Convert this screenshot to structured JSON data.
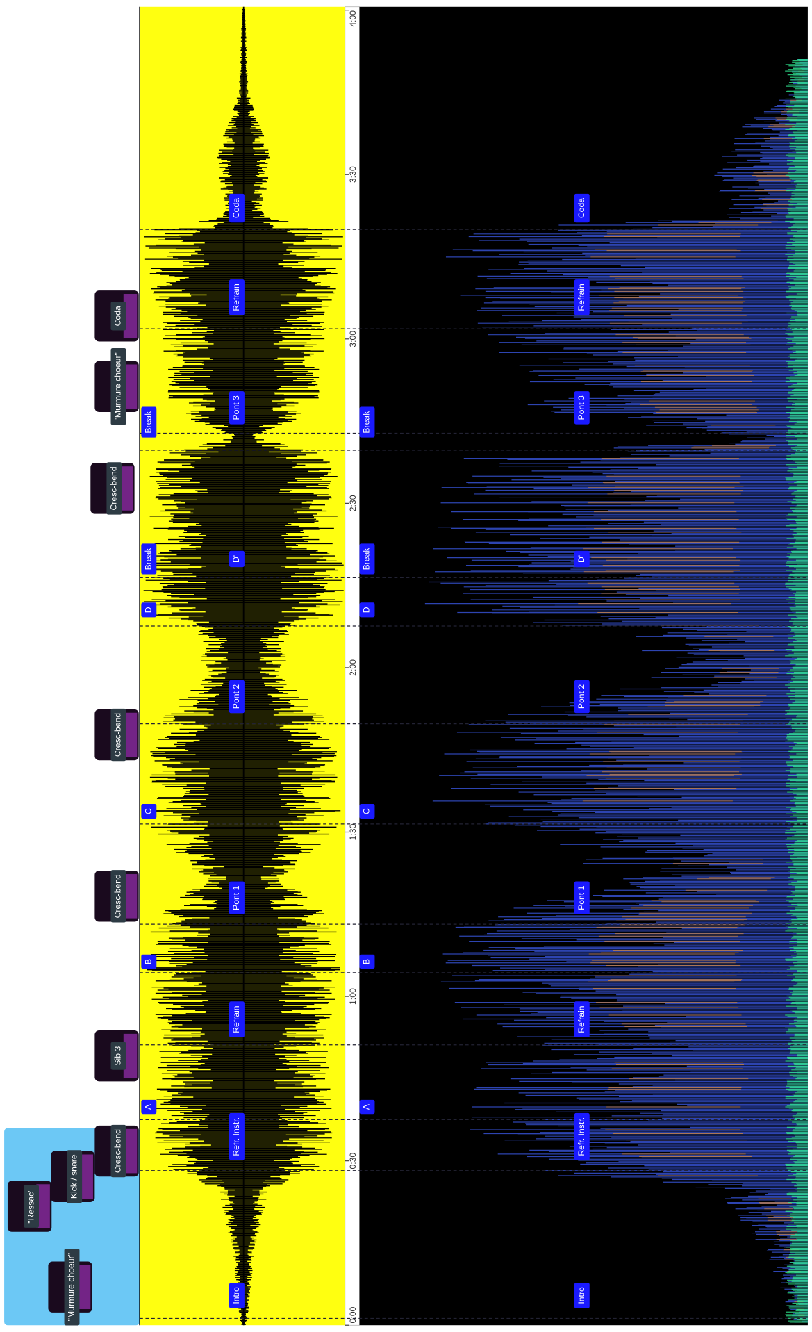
{
  "time_axis": {
    "ticks": [
      "0:00",
      "0:30",
      "1:00",
      "1:30",
      "2:00",
      "2:30",
      "3:00",
      "3:30",
      "4:00"
    ]
  },
  "sections": [
    "Intro",
    "Refr. Instr.",
    "Refrain",
    "Pont 1",
    "Pont 2",
    "D'",
    "Pont 3",
    "Refrain",
    "Coda"
  ],
  "parts": [
    "A",
    "B",
    "C",
    "D",
    "Break",
    "Break"
  ],
  "events": [
    "\"Murmure choeur\"",
    "\"Ressac\"",
    "Kick / snare",
    "Cresc-bend",
    "Sib 3",
    "Cresc-bend",
    "Cresc-bend",
    "Cresc-bend",
    "\"Murmure choeur\"",
    "Coda"
  ]
}
